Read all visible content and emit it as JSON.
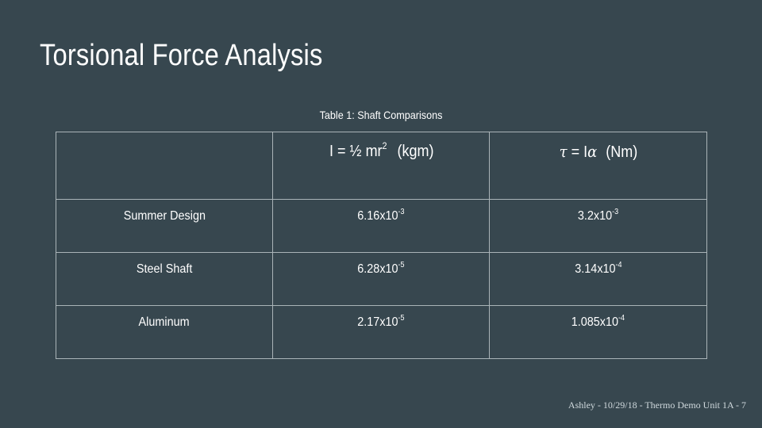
{
  "slide": {
    "title": "Torsional Force Analysis",
    "footer": "Ashley - 10/29/18 - Thermo Demo Unit 1A - 7"
  },
  "table": {
    "caption": "Table 1: Shaft Comparisons",
    "headers": [
      {
        "formula_lhs": "",
        "formula_rhs": "",
        "exponent": "",
        "unit": ""
      },
      {
        "formula_lhs": "I",
        "formula_rhs": "½ mr",
        "exponent": "2",
        "unit": "(kgm)"
      },
      {
        "formula_lhs": "τ",
        "formula_rhs": "I",
        "formula_greek": "α",
        "exponent": "",
        "unit": "(Nm)"
      }
    ],
    "rows": [
      {
        "label": "Summer Design",
        "inertia": {
          "mantissa": "6.16x10",
          "exponent": "-3"
        },
        "torque": {
          "mantissa": "3.2x10",
          "exponent": "-3"
        }
      },
      {
        "label": "Steel Shaft",
        "inertia": {
          "mantissa": "6.28x10",
          "exponent": "-5"
        },
        "torque": {
          "mantissa": "3.14x10",
          "exponent": "-4"
        }
      },
      {
        "label": "Aluminum",
        "inertia": {
          "mantissa": "2.17x10",
          "exponent": "-5"
        },
        "torque": {
          "mantissa": "1.085x10",
          "exponent": "-4"
        }
      }
    ]
  }
}
